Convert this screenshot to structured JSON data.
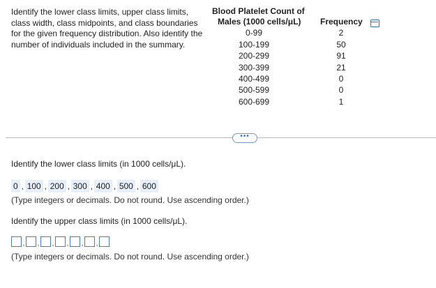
{
  "question_text": "Identify the lower class limits, upper class limits, class width, class midpoints, and class boundaries for the given frequency distribution. Also identify the number of individuals included in the summary.",
  "table": {
    "header_col1_line1": "Blood Platelet Count of",
    "header_col1_line2": "Males (1000 cells/μL)",
    "header_col2": "Frequency",
    "rows": [
      {
        "cls": "0-99",
        "freq": "2"
      },
      {
        "cls": "100-199",
        "freq": "50"
      },
      {
        "cls": "200-299",
        "freq": "91"
      },
      {
        "cls": "300-399",
        "freq": "21"
      },
      {
        "cls": "400-499",
        "freq": "0"
      },
      {
        "cls": "500-599",
        "freq": "0"
      },
      {
        "cls": "600-699",
        "freq": "1"
      }
    ]
  },
  "expand_label": "•••",
  "part_lower": {
    "prompt": "Identify the lower class limits (in 1000 cells/μL).",
    "answers": [
      "0",
      "100",
      "200",
      "300",
      "400",
      "500",
      "600"
    ],
    "hint": "(Type integers or decimals. Do not round. Use ascending order.)"
  },
  "part_upper": {
    "prompt": "Identify the upper class limits (in 1000 cells/μL).",
    "hint": "(Type integers or decimals. Do not round. Use ascending order.)"
  },
  "separator": ","
}
